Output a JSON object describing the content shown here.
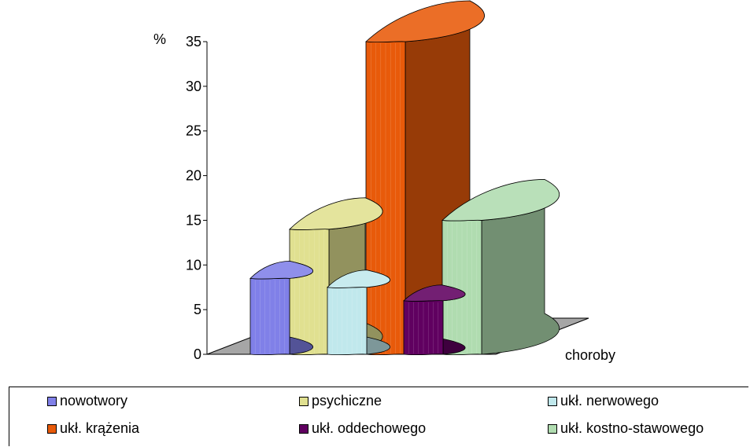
{
  "chart_data": {
    "type": "bar",
    "ylabel": "%",
    "xlabel": "choroby",
    "ylim": [
      0,
      35
    ],
    "yticks": [
      0,
      5,
      10,
      15,
      20,
      25,
      30,
      35
    ],
    "legend_position": "bottom",
    "series": [
      {
        "name": "nowotwory",
        "value": 8.5,
        "color": "#8080e8"
      },
      {
        "name": "psychiczne",
        "value": 14,
        "color": "#e0e090"
      },
      {
        "name": "ukł. nerwowego",
        "value": 7.5,
        "color": "#c0e8ec"
      },
      {
        "name": "ukł. krążenia",
        "value": 35,
        "color": "#e85a0a"
      },
      {
        "name": "ukł. oddechowego",
        "value": 6,
        "color": "#600060"
      },
      {
        "name": "ukł. kostno-stawowego",
        "value": 15,
        "color": "#b0dcb0"
      }
    ]
  }
}
